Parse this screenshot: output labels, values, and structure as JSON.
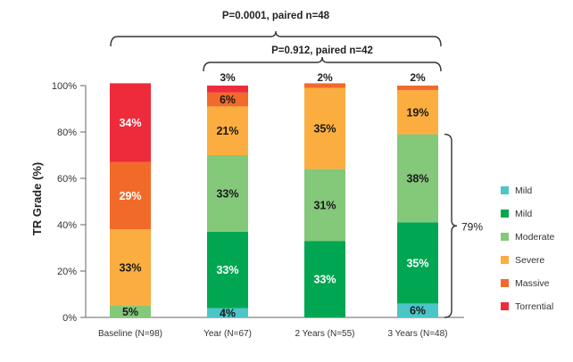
{
  "chart_data": {
    "type": "bar",
    "stacked": true,
    "ylabel": "TR Grade (%)",
    "ylim": [
      0,
      100
    ],
    "yticks": [
      "0%",
      "20%",
      "40%",
      "60%",
      "80%",
      "100%"
    ],
    "categories": [
      "Baseline (N=98)",
      "Year (N=67)",
      "2 Years (N=55)",
      "3 Years (N=48)"
    ],
    "series": [
      {
        "name": "Mild",
        "color": "#4cc5c8",
        "values": [
          0,
          4,
          0,
          6
        ],
        "labels": [
          "",
          "4%",
          "",
          "6%"
        ]
      },
      {
        "name": "Mild",
        "color": "#00a651",
        "values": [
          0,
          33,
          33,
          35
        ],
        "labels": [
          "",
          "33%",
          "33%",
          "35%"
        ]
      },
      {
        "name": "Moderate",
        "color": "#84c87a",
        "values": [
          5,
          33,
          31,
          38
        ],
        "labels": [
          "5%",
          "33%",
          "31%",
          "38%"
        ]
      },
      {
        "name": "Severe",
        "color": "#fbae3f",
        "values": [
          33,
          21,
          35,
          19
        ],
        "labels": [
          "33%",
          "21%",
          "35%",
          "19%"
        ]
      },
      {
        "name": "Massive",
        "color": "#f26a2a",
        "values": [
          29,
          6,
          2,
          2
        ],
        "labels": [
          "29%",
          "6%",
          "",
          ""
        ]
      },
      {
        "name": "Torrential",
        "color": "#ee2b3b",
        "values": [
          34,
          3,
          0,
          0
        ],
        "labels": [
          "34%",
          "",
          "",
          ""
        ]
      }
    ],
    "top_labels": [
      "",
      "3%",
      "2%",
      "2%"
    ],
    "legend_position": "right",
    "annotations": {
      "bracket_outer": "P=0.0001, paired n=48",
      "bracket_inner": "P=0.912, paired n=42",
      "right_bracket": "79%"
    }
  }
}
